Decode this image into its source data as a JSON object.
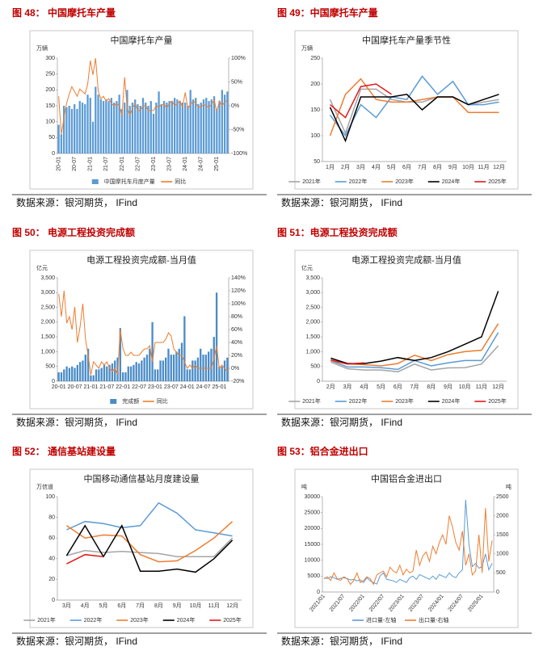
{
  "figures": [
    {
      "caption": "图 48： 中国摩托车产量",
      "source": "数据来源：银河期货， IFind"
    },
    {
      "caption": "图 49：中国摩托车产量",
      "source": "数据来源：银河期货， IFind"
    },
    {
      "caption": "图 50： 电源工程投资完成额",
      "source": "数据来源：银河期货， IFind"
    },
    {
      "caption": "图 51：电源工程投资完成额",
      "source": "数据来源：银河期货， IFind"
    },
    {
      "caption": "图 52： 通信基站建设量",
      "source": "数据来源：银河期货， IFind"
    },
    {
      "caption": "图 53：铝合金进出口",
      "source": "数据来源：银河期货， IFind"
    }
  ],
  "chart_data": [
    {
      "type": "combo",
      "title": "中国摩托车产量",
      "y_unit": "万辆",
      "categories": [
        "20-01",
        null,
        null,
        null,
        null,
        null,
        "20-07",
        null,
        null,
        null,
        null,
        null,
        "21-01",
        null,
        null,
        null,
        null,
        null,
        "21-07",
        null,
        null,
        null,
        null,
        null,
        "22-01",
        null,
        null,
        null,
        null,
        null,
        "22-07",
        null,
        null,
        null,
        null,
        null,
        "23-01",
        null,
        null,
        null,
        null,
        null,
        "23-07",
        null,
        null,
        null,
        null,
        null,
        "24-01",
        null,
        null,
        null,
        null,
        null,
        "24-07",
        null,
        null,
        null,
        null,
        null,
        "25-01",
        null,
        null,
        null,
        null
      ],
      "series": [
        {
          "name": "中国摩托车月度产量",
          "kind": "bar",
          "color": "#5b9bd5",
          "values": [
            90,
            60,
            150,
            145,
            150,
            140,
            155,
            140,
            165,
            160,
            155,
            185,
            175,
            100,
            210,
            185,
            170,
            165,
            170,
            165,
            175,
            160,
            165,
            185,
            140,
            160,
            200,
            150,
            160,
            170,
            155,
            150,
            175,
            160,
            150,
            165,
            125,
            160,
            195,
            155,
            165,
            160,
            165,
            165,
            175,
            170,
            165,
            160,
            160,
            150,
            200,
            170,
            175,
            155,
            160,
            170,
            175,
            165,
            170,
            180,
            140,
            165,
            200,
            185,
            195
          ]
        },
        {
          "name": "同比",
          "kind": "line",
          "axis": "y2",
          "color": "#ed7d31",
          "values": [
            20,
            -60,
            -25,
            5,
            25,
            40,
            30,
            20,
            35,
            30,
            25,
            45,
            95,
            65,
            100,
            30,
            15,
            20,
            10,
            15,
            5,
            0,
            5,
            0,
            -20,
            60,
            -5,
            -20,
            -5,
            5,
            -10,
            -10,
            0,
            0,
            -10,
            -10,
            -10,
            0,
            -3,
            3,
            3,
            -5,
            5,
            10,
            0,
            5,
            10,
            -3,
            28,
            -5,
            2,
            10,
            6,
            -3,
            -3,
            3,
            0,
            -3,
            3,
            12,
            -12,
            10,
            0,
            8,
            12
          ]
        }
      ],
      "ylim": [
        0,
        300
      ],
      "yticks": [
        0,
        50,
        100,
        150,
        200,
        250,
        300
      ],
      "y2lim": [
        -100,
        100
      ],
      "y2ticks": [
        {
          "value": -100,
          "label": "-100%"
        },
        {
          "value": -50,
          "label": "-50%"
        },
        {
          "value": 0,
          "label": "0%"
        },
        {
          "value": 50,
          "label": "50%"
        },
        {
          "value": 100,
          "label": "100%"
        }
      ],
      "grid": false
    },
    {
      "type": "line",
      "title": "中国摩托车产量季节性",
      "y_unit": "万辆",
      "categories": [
        "1月",
        "2月",
        "3月",
        "4月",
        "5月",
        "6月",
        "7月",
        "8月",
        "9月",
        "10月",
        "11月",
        "12月"
      ],
      "series": [
        {
          "name": "2021年",
          "color": "#a5a5a5",
          "values": [
            170,
            105,
            190,
            190,
            170,
            165,
            165,
            175,
            175,
            160,
            165,
            170
          ]
        },
        {
          "name": "2022年",
          "color": "#5b9bd5",
          "values": [
            140,
            100,
            160,
            135,
            175,
            170,
            215,
            180,
            205,
            160,
            160,
            165
          ]
        },
        {
          "name": "2023年",
          "color": "#ed7d31",
          "values": [
            100,
            180,
            210,
            170,
            165,
            165,
            170,
            175,
            175,
            145,
            145,
            145
          ]
        },
        {
          "name": "2024年",
          "color": "#000000",
          "values": [
            155,
            90,
            175,
            175,
            175,
            180,
            150,
            175,
            175,
            160,
            170,
            180
          ]
        },
        {
          "name": "2025年",
          "color": "#e31a1c",
          "values": [
            160,
            135,
            195,
            200,
            180,
            null,
            null,
            null,
            null,
            null,
            null,
            null
          ]
        }
      ],
      "ylim": [
        50,
        250
      ],
      "yticks": [
        50,
        100,
        150,
        200,
        250
      ],
      "grid": false
    },
    {
      "type": "combo",
      "title": "电源工程投资完成额-当月值",
      "y_unit": "亿元",
      "categories": [
        "20-01",
        null,
        null,
        null,
        null,
        null,
        "20-07",
        null,
        null,
        null,
        null,
        null,
        "21-01",
        null,
        null,
        null,
        null,
        null,
        "21-07",
        null,
        null,
        null,
        null,
        null,
        "22-01",
        null,
        null,
        null,
        null,
        null,
        "22-07",
        null,
        null,
        null,
        null,
        null,
        "23-01",
        null,
        null,
        null,
        null,
        null,
        "23-07",
        null,
        null,
        null,
        null,
        null,
        "24-01",
        null,
        null,
        null,
        null,
        null,
        "24-07",
        null,
        null,
        null,
        null,
        null,
        "25-01",
        null,
        null,
        null
      ],
      "series": [
        {
          "name": "完成额",
          "kind": "bar",
          "color": "#4a8cc7",
          "values": [
            300,
            300,
            400,
            500,
            450,
            500,
            450,
            550,
            650,
            700,
            900,
            1100,
            200,
            200,
            400,
            400,
            450,
            550,
            500,
            550,
            600,
            700,
            800,
            1800,
            300,
            300,
            500,
            500,
            550,
            650,
            600,
            700,
            800,
            900,
            1100,
            2000,
            400,
            400,
            700,
            700,
            800,
            1100,
            900,
            900,
            1000,
            1100,
            1300,
            2200,
            400,
            400,
            700,
            700,
            800,
            1100,
            900,
            900,
            1000,
            1100,
            1500,
            3000,
            500,
            500,
            700,
            800
          ]
        },
        {
          "name": "同比",
          "kind": "line",
          "axis": "y2",
          "color": "#ed7d31",
          "values": [
            115,
            80,
            120,
            70,
            80,
            60,
            95,
            40,
            65,
            100,
            45,
            20,
            -10,
            10,
            5,
            0,
            10,
            5,
            10,
            0,
            -5,
            0,
            -10,
            60,
            30,
            20,
            20,
            25,
            20,
            20,
            20,
            25,
            30,
            30,
            35,
            10,
            40,
            40,
            40,
            40,
            45,
            55,
            50,
            30,
            25,
            20,
            20,
            10,
            0,
            5,
            0,
            5,
            0,
            0,
            0,
            0,
            0,
            0,
            15,
            35,
            0,
            5,
            0,
            -5
          ]
        }
      ],
      "ylim": [
        0,
        3500
      ],
      "yticks": [
        0,
        500,
        {
          "value": 1000,
          "label": "1,000"
        },
        {
          "value": 1500,
          "label": "1,500"
        },
        {
          "value": 2000,
          "label": "2,000"
        },
        {
          "value": 2500,
          "label": "2,500"
        },
        {
          "value": 3000,
          "label": "3,000"
        },
        {
          "value": 3500,
          "label": "3,500"
        }
      ],
      "y2lim": [
        -20,
        140
      ],
      "y2ticks": [
        {
          "value": -20,
          "label": "-20%"
        },
        {
          "value": 0,
          "label": "0%"
        },
        {
          "value": 20,
          "label": "20%"
        },
        {
          "value": 40,
          "label": "40%"
        },
        {
          "value": 60,
          "label": "60%"
        },
        {
          "value": 80,
          "label": "80%"
        },
        {
          "value": 100,
          "label": "100%"
        },
        {
          "value": 120,
          "label": "120%"
        },
        {
          "value": 140,
          "label": "140%"
        }
      ],
      "grid": false
    },
    {
      "type": "line",
      "title": "电源工程投资完成额-当月值",
      "y_unit": "亿元",
      "categories": [
        "2月",
        "3月",
        "4月",
        "5月",
        "6月",
        "7月",
        "8月",
        "9月",
        "10月",
        "11月",
        "12月"
      ],
      "series": [
        {
          "name": "2021年",
          "color": "#a5a5a5",
          "values": [
            650,
            420,
            380,
            380,
            320,
            580,
            380,
            450,
            460,
            580,
            1200
          ]
        },
        {
          "name": "2022年",
          "color": "#5b9bd5",
          "values": [
            700,
            480,
            480,
            460,
            400,
            700,
            520,
            620,
            700,
            700,
            1650
          ]
        },
        {
          "name": "2023年",
          "color": "#ed7d31",
          "values": [
            700,
            580,
            560,
            520,
            600,
            880,
            700,
            900,
            1000,
            1050,
            1950
          ]
        },
        {
          "name": "2024年",
          "color": "#000000",
          "values": [
            780,
            600,
            600,
            680,
            800,
            700,
            800,
            1000,
            1250,
            1500,
            3050
          ]
        },
        {
          "name": "2025年",
          "color": "#e31a1c",
          "values": [
            720,
            580,
            620,
            null,
            null,
            null,
            null,
            null,
            null,
            null,
            null
          ]
        }
      ],
      "ylim": [
        0,
        3500
      ],
      "yticks": [
        0,
        500,
        {
          "value": 1000,
          "label": "1,000"
        },
        {
          "value": 1500,
          "label": "1,500"
        },
        {
          "value": 2000,
          "label": "2,000"
        },
        {
          "value": 2500,
          "label": "2,500"
        },
        {
          "value": 3000,
          "label": "3,000"
        },
        {
          "value": 3500,
          "label": "3,500"
        }
      ],
      "grid": false
    },
    {
      "type": "line",
      "title": "中国移动通信基站月度建设量",
      "y_unit": "万信道",
      "categories": [
        "3月",
        "4月",
        "5月",
        "6月",
        "7月",
        "8月",
        "9月",
        "10月",
        "11月",
        "12月"
      ],
      "series": [
        {
          "name": "2021年",
          "color": "#a5a5a5",
          "values": [
            43,
            48,
            46,
            47,
            46,
            45,
            42,
            42,
            42,
            60
          ]
        },
        {
          "name": "2022年",
          "color": "#5b9bd5",
          "values": [
            68,
            76,
            74,
            70,
            72,
            94,
            84,
            68,
            65,
            62
          ]
        },
        {
          "name": "2023年",
          "color": "#ed7d31",
          "values": [
            72,
            60,
            63,
            62,
            44,
            37,
            38,
            48,
            60,
            76
          ]
        },
        {
          "name": "2024年",
          "color": "#000000",
          "values": [
            43,
            72,
            42,
            72,
            28,
            28,
            30,
            27,
            40,
            58
          ]
        },
        {
          "name": "2025年",
          "color": "#e31a1c",
          "values": [
            35,
            44,
            42,
            null,
            null,
            null,
            null,
            null,
            null,
            null
          ]
        }
      ],
      "ylim": [
        0,
        100
      ],
      "yticks": [
        0,
        20,
        40,
        60,
        80,
        100
      ],
      "grid": false
    },
    {
      "type": "line",
      "title": "中国铝合金进出口",
      "y_unit": "吨",
      "y2_unit": "吨",
      "categories": [
        "2021/01",
        null,
        null,
        null,
        null,
        null,
        "2021/07",
        null,
        null,
        null,
        null,
        null,
        "2022/01",
        null,
        null,
        null,
        null,
        null,
        "2022/07",
        null,
        null,
        null,
        null,
        null,
        "2023/01",
        null,
        null,
        null,
        null,
        null,
        "2023/07",
        null,
        null,
        null,
        null,
        null,
        "2024/01",
        null,
        null,
        null,
        null,
        null,
        "2024/07",
        null,
        null,
        null,
        null,
        null,
        "2025/01",
        null,
        null,
        null
      ],
      "series": [
        {
          "name": "进口量-左轴",
          "color": "#5b9bd5",
          "values": [
            4500,
            4200,
            4800,
            4500,
            4000,
            4300,
            4500,
            4200,
            3800,
            4000,
            3500,
            3800,
            3000,
            4500,
            3500,
            3000,
            2500,
            5000,
            6000,
            4000,
            3800,
            3500,
            3000,
            4000,
            3500,
            3000,
            4500,
            5000,
            4000,
            5500,
            5000,
            4500,
            4000,
            5000,
            4000,
            5500,
            5000,
            4500,
            6000,
            5000,
            4500,
            6000,
            7000,
            29000,
            15000,
            8000,
            9000,
            7500,
            8000,
            12000,
            7000,
            9000
          ]
        },
        {
          "name": "出口量-右轴",
          "axis": "y2",
          "color": "#ed7d31",
          "values": [
            350,
            400,
            300,
            500,
            350,
            300,
            400,
            350,
            200,
            300,
            500,
            250,
            300,
            400,
            350,
            200,
            450,
            500,
            550,
            400,
            650,
            550,
            500,
            700,
            450,
            600,
            500,
            550,
            1100,
            700,
            950,
            1050,
            800,
            1200,
            1000,
            1300,
            1500,
            1250,
            2000,
            1700,
            1300,
            1100,
            1600,
            700,
            1000,
            450,
            550,
            1500,
            500,
            2200,
            800,
            1350
          ]
        }
      ],
      "ylim": [
        0,
        30000
      ],
      "yticks": [
        0,
        5000,
        10000,
        15000,
        20000,
        25000,
        30000
      ],
      "y2lim": [
        0,
        2500
      ],
      "y2ticks": [
        0,
        500,
        1000,
        1500,
        2000,
        2500
      ],
      "grid": false
    }
  ]
}
